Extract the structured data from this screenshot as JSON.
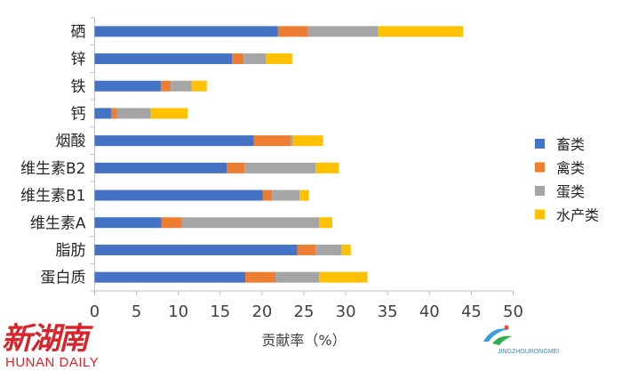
{
  "chart_data": {
    "type": "bar",
    "orientation": "horizontal",
    "stacked": true,
    "categories": [
      "硒",
      "锌",
      "铁",
      "钙",
      "烟酸",
      "维生素B2",
      "维生素B1",
      "维生素A",
      "脂肪",
      "蛋白质"
    ],
    "series": [
      {
        "name": "畜类",
        "color": "#4472c4",
        "values": [
          21.9,
          16.4,
          7.9,
          2.0,
          19.0,
          15.8,
          20.1,
          8.0,
          24.2,
          18.0
        ]
      },
      {
        "name": "禽类",
        "color": "#ed7d31",
        "values": [
          3.6,
          1.4,
          1.2,
          0.6,
          4.4,
          2.1,
          1.1,
          2.4,
          2.2,
          3.6
        ]
      },
      {
        "name": "蛋类",
        "color": "#a5a5a5",
        "values": [
          8.4,
          2.7,
          2.5,
          4.1,
          0.3,
          8.5,
          3.3,
          16.4,
          3.1,
          5.2
        ]
      },
      {
        "name": "水产类",
        "color": "#ffc000",
        "values": [
          10.1,
          3.1,
          1.8,
          4.4,
          3.6,
          2.8,
          1.1,
          1.6,
          1.1,
          5.8
        ]
      }
    ],
    "xlabel": "贡献率（%）",
    "xlim": [
      0,
      50
    ],
    "xticks": [
      "0",
      "5",
      "10",
      "15",
      "20",
      "25",
      "30",
      "35",
      "40",
      "45",
      "50"
    ],
    "legend_position": "right",
    "grid": false
  },
  "watermarks": {
    "brand_cn": "新湖南",
    "brand_en": "HUNAN DAILY",
    "logo_text": "JINGZHOURONGMEI"
  }
}
